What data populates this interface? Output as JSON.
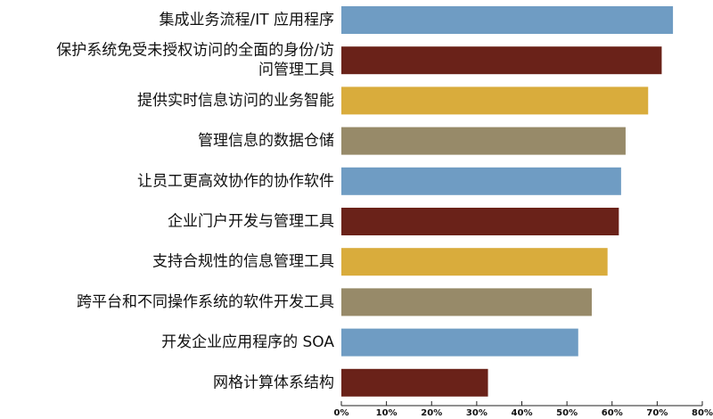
{
  "chart_data": {
    "type": "bar",
    "orientation": "horizontal",
    "categories": [
      [
        "集成业务流程/IT  应用程序"
      ],
      [
        "保护系统免受未授权访问的全面的身份/访",
        "问管理工具"
      ],
      [
        "提供实时信息访问的业务智能"
      ],
      [
        "管理信息的数据仓储"
      ],
      [
        "让员工更高效协作的协作软件"
      ],
      [
        "企业门户开发与管理工具"
      ],
      [
        "支持合规性的信息管理工具"
      ],
      [
        "跨平台和不同操作系统的软件开发工具"
      ],
      [
        "开发企业应用程序的  SOA"
      ],
      [
        "网格计算体系结构"
      ]
    ],
    "values": [
      73.5,
      71,
      68,
      63,
      62,
      61.5,
      59,
      55.5,
      52.5,
      32.5
    ],
    "colors": [
      "#6f9cc3",
      "#6a2219",
      "#d9ac3c",
      "#978a69",
      "#6f9cc3",
      "#6a2219",
      "#d9ac3c",
      "#978a69",
      "#6f9cc3",
      "#6a2219"
    ],
    "x_ticks": [
      "0%",
      "10%",
      "20%",
      "30%",
      "40%",
      "50%",
      "60%",
      "70%",
      "80%"
    ],
    "xlim": [
      0,
      80
    ],
    "title": "",
    "xlabel": "",
    "ylabel": "",
    "grid": false,
    "legend": "none"
  }
}
